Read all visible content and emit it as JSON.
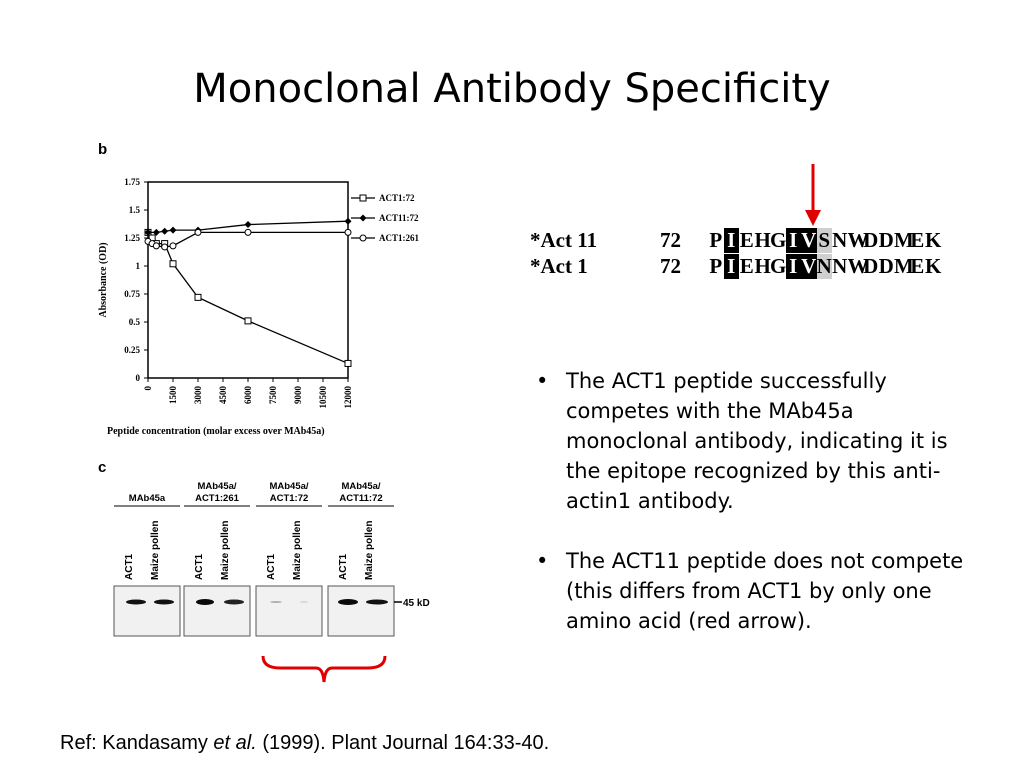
{
  "slide": {
    "title": "Monoclonal Antibody Specificity",
    "bullets": [
      "The ACT1 peptide successfully competes with the MAb45a monoclonal antibody, indicating it is the epitope recognized by this anti-actin1 antibody.",
      "The ACT11 peptide does not compete (this differs from ACT1 by only one amino acid (red arrow)."
    ],
    "reference": {
      "prefix": "Ref: Kandasamy ",
      "italic": "et al.",
      "suffix": " (1999). Plant Journal 164:33-40."
    },
    "accent_color": "#e00000"
  },
  "panel_b": {
    "label": "b",
    "chart_data": {
      "type": "line",
      "ylabel": "Absorbance (OD)",
      "xlabel": "Peptide concentration (molar excess over MAb45a)",
      "ylim": [
        0,
        1.75
      ],
      "yticks": [
        "0",
        "0.25",
        "0.5",
        "0.75",
        "1",
        "1.25",
        "1.5",
        "1.75"
      ],
      "xticks": [
        "0",
        "1500",
        "3000",
        "4500",
        "6000",
        "7500",
        "9000",
        "10500",
        "12000"
      ],
      "xlim": [
        0,
        12000
      ],
      "legend_position": "right",
      "series": [
        {
          "name": "ACT1:72",
          "marker": "square",
          "x": [
            0,
            250,
            500,
            1000,
            1500,
            3000,
            6000,
            12000
          ],
          "y": [
            1.3,
            1.25,
            1.2,
            1.2,
            1.02,
            0.72,
            0.51,
            0.13
          ]
        },
        {
          "name": "ACT11:72",
          "marker": "diamond",
          "x": [
            0,
            500,
            1000,
            1500,
            3000,
            6000,
            12000
          ],
          "y": [
            1.3,
            1.3,
            1.31,
            1.32,
            1.32,
            1.37,
            1.4
          ]
        },
        {
          "name": "ACT1:261",
          "marker": "circle",
          "x": [
            0,
            250,
            500,
            1000,
            1500,
            3000,
            6000,
            12000
          ],
          "y": [
            1.22,
            1.2,
            1.18,
            1.17,
            1.18,
            1.3,
            1.3,
            1.3
          ]
        }
      ]
    }
  },
  "panel_c": {
    "label": "c",
    "size_marker": "45 kD",
    "groups": [
      {
        "title_lines": [
          "MAb45a"
        ],
        "lanes": [
          "ACT1",
          "Maize pollen"
        ]
      },
      {
        "title_lines": [
          "MAb45a/",
          "ACT1:261"
        ],
        "lanes": [
          "ACT1",
          "Maize pollen"
        ]
      },
      {
        "title_lines": [
          "MAb45a/",
          "ACT1:72"
        ],
        "lanes": [
          "ACT1",
          "Maize pollen"
        ]
      },
      {
        "title_lines": [
          "MAb45a/",
          "ACT11:72"
        ],
        "lanes": [
          "ACT1",
          "Maize pollen"
        ]
      }
    ]
  },
  "alignment": {
    "rows": [
      {
        "name": "*Act 11",
        "number": "72",
        "residues": [
          "P",
          "I",
          "E",
          "H",
          "G",
          "I",
          "V",
          "S",
          "N",
          "W",
          "D",
          "D",
          "M",
          "E",
          "K"
        ]
      },
      {
        "name": "*Act 1",
        "number": "72",
        "residues": [
          "P",
          "I",
          "E",
          "H",
          "G",
          "I",
          "V",
          "N",
          "N",
          "W",
          "D",
          "D",
          "M",
          "E",
          "K"
        ]
      }
    ],
    "highlighted_positions": [
      1,
      5,
      6
    ],
    "gray_positions": [
      7
    ]
  }
}
